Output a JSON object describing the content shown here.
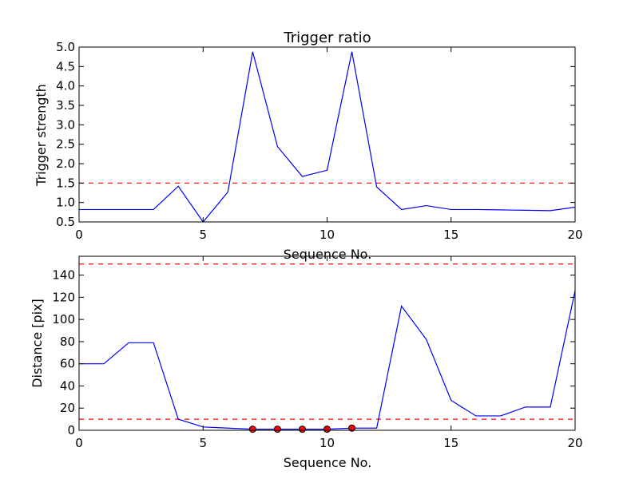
{
  "chart_data": [
    {
      "type": "line",
      "title": "Trigger ratio",
      "xlabel": "Sequence No.",
      "ylabel": "Trigger strength",
      "xlim": [
        0,
        20
      ],
      "ylim": [
        0.5,
        5.0
      ],
      "xticks": [
        "0",
        "5",
        "10",
        "15",
        "20"
      ],
      "yticks": [
        "0.5",
        "1.0",
        "1.5",
        "2.0",
        "2.5",
        "3.0",
        "3.5",
        "4.0",
        "4.5",
        "5.0"
      ],
      "grid": false,
      "series": [
        {
          "color": "#0000ff",
          "style": "solid",
          "x": [
            0,
            1,
            2,
            3,
            4,
            5,
            6,
            7,
            8,
            9,
            10,
            11,
            12,
            13,
            14,
            15,
            16,
            17,
            18,
            19,
            20
          ],
          "y": [
            0.82,
            0.82,
            0.82,
            0.82,
            1.42,
            0.5,
            1.27,
            4.88,
            2.44,
            1.67,
            1.83,
            4.88,
            1.4,
            0.82,
            0.92,
            0.82,
            0.82,
            0.81,
            0.8,
            0.79,
            0.88
          ]
        }
      ],
      "reference_lines": [
        {
          "y": 1.5,
          "color": "#ff0000",
          "style": "dashed"
        }
      ]
    },
    {
      "type": "line",
      "title": "",
      "xlabel": "Sequence No.",
      "ylabel": "Distance [pix]",
      "xlim": [
        0,
        20
      ],
      "ylim": [
        0,
        157
      ],
      "xticks": [
        "0",
        "5",
        "10",
        "15",
        "20"
      ],
      "yticks": [
        "0",
        "20",
        "40",
        "60",
        "80",
        "100",
        "120",
        "140"
      ],
      "grid": false,
      "series": [
        {
          "color": "#0000ff",
          "style": "solid",
          "x": [
            0,
            1,
            2,
            3,
            4,
            5,
            6,
            7,
            8,
            9,
            10,
            11,
            12,
            13,
            14,
            15,
            16,
            17,
            18,
            19,
            20
          ],
          "y": [
            60,
            60,
            79,
            79,
            10,
            3,
            2,
            1,
            1,
            1,
            1,
            2,
            2,
            112,
            82,
            27,
            13,
            13,
            21,
            21,
            126
          ]
        }
      ],
      "markers": {
        "color": "#ff0000",
        "x": [
          7,
          8,
          9,
          10,
          11
        ],
        "y": [
          1,
          1,
          1,
          1,
          2
        ]
      },
      "reference_lines": [
        {
          "y": 10,
          "color": "#ff0000",
          "style": "dashed"
        },
        {
          "y": 150,
          "color": "#ff0000",
          "style": "dashed"
        }
      ]
    }
  ]
}
